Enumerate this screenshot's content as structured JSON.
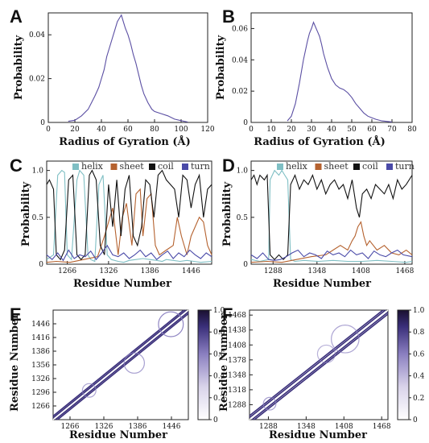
{
  "chart_data": [
    {
      "panel_label": "A",
      "type": "line",
      "xlabel": "Radius of Gyration (Å)",
      "ylabel": "Probability",
      "xlim": [
        0,
        120
      ],
      "ylim": [
        0,
        0.05
      ],
      "xticks": [
        "0",
        "20",
        "40",
        "60",
        "80",
        "100",
        "120"
      ],
      "yticks": [
        "0",
        "0.02",
        "0.04"
      ],
      "color": "#5b4fa3",
      "series": [
        {
          "x": [
            15,
            20,
            25,
            30,
            35,
            38,
            40,
            42,
            44,
            46,
            48,
            50,
            52,
            54,
            55,
            56,
            58,
            60,
            62,
            64,
            66,
            68,
            70,
            72,
            75,
            78,
            80,
            85,
            90,
            95,
            100,
            105
          ],
          "values": [
            0.0005,
            0.001,
            0.003,
            0.006,
            0.012,
            0.016,
            0.02,
            0.024,
            0.03,
            0.034,
            0.038,
            0.042,
            0.046,
            0.048,
            0.049,
            0.047,
            0.043,
            0.04,
            0.036,
            0.031,
            0.027,
            0.022,
            0.017,
            0.013,
            0.009,
            0.006,
            0.005,
            0.004,
            0.003,
            0.0015,
            0.0008,
            0.0002
          ]
        }
      ]
    },
    {
      "panel_label": "B",
      "type": "line",
      "xlabel": "Radius of Gyration (Å)",
      "ylabel": "Probability",
      "xlim": [
        0,
        80
      ],
      "ylim": [
        0,
        0.07
      ],
      "xticks": [
        "0",
        "10",
        "20",
        "30",
        "40",
        "50",
        "60",
        "70",
        "80"
      ],
      "yticks": [
        "0",
        "0.02",
        "0.04",
        "0.06"
      ],
      "color": "#5b4fa3",
      "series": [
        {
          "x": [
            18,
            20,
            22,
            24,
            26,
            28,
            29,
            30,
            31,
            32,
            33,
            34,
            35,
            36,
            38,
            40,
            42,
            44,
            46,
            48,
            50,
            52,
            54,
            56,
            58,
            60,
            62,
            65,
            70
          ],
          "values": [
            0.001,
            0.004,
            0.012,
            0.025,
            0.04,
            0.052,
            0.057,
            0.06,
            0.064,
            0.061,
            0.058,
            0.055,
            0.05,
            0.044,
            0.035,
            0.028,
            0.024,
            0.022,
            0.021,
            0.019,
            0.016,
            0.012,
            0.009,
            0.006,
            0.004,
            0.003,
            0.002,
            0.001,
            0.0003
          ]
        }
      ]
    },
    {
      "panel_label": "C",
      "type": "line",
      "xlabel": "Residue Number",
      "ylabel": "Probability",
      "xlim": [
        1236,
        1476
      ],
      "ylim": [
        0,
        1.1
      ],
      "xticks": [
        "1266",
        "1326",
        "1386",
        "1446"
      ],
      "yticks": [
        "0",
        "0.5",
        "1.0"
      ],
      "legend": [
        "helix",
        "sheet",
        "coil",
        "turn"
      ],
      "colors": [
        "#7fbfc4",
        "#b5622f",
        "#111111",
        "#4a4aa8"
      ],
      "series": [
        {
          "name": "helix",
          "x": [
            1236,
            1246,
            1252,
            1258,
            1262,
            1266,
            1272,
            1280,
            1284,
            1290,
            1296,
            1300,
            1306,
            1312,
            1318,
            1324,
            1330,
            1340,
            1348,
            1356,
            1366,
            1376,
            1386,
            1396,
            1404,
            1410,
            1420,
            1430,
            1440,
            1450,
            1460,
            1476
          ],
          "values": [
            0.05,
            0.1,
            0.95,
            1.0,
            0.98,
            0.1,
            0.05,
            0.9,
            1.0,
            0.95,
            0.1,
            0.05,
            0.03,
            0.85,
            0.95,
            0.1,
            0.05,
            0.03,
            0.02,
            0.04,
            0.05,
            0.06,
            0.05,
            0.04,
            0.03,
            0.05,
            0.04,
            0.03,
            0.04,
            0.03,
            0.02,
            0.03
          ]
        },
        {
          "name": "sheet",
          "x": [
            1236,
            1250,
            1270,
            1290,
            1310,
            1320,
            1326,
            1332,
            1340,
            1346,
            1352,
            1360,
            1366,
            1372,
            1376,
            1382,
            1388,
            1394,
            1400,
            1410,
            1420,
            1426,
            1432,
            1440,
            1446,
            1452,
            1458,
            1464,
            1470,
            1476
          ],
          "values": [
            0.02,
            0.03,
            0.02,
            0.05,
            0.08,
            0.3,
            0.45,
            0.6,
            0.1,
            0.5,
            0.65,
            0.2,
            0.75,
            0.8,
            0.3,
            0.7,
            0.75,
            0.2,
            0.1,
            0.15,
            0.2,
            0.5,
            0.3,
            0.1,
            0.3,
            0.4,
            0.5,
            0.45,
            0.2,
            0.1
          ]
        },
        {
          "name": "coil",
          "x": [
            1236,
            1240,
            1246,
            1250,
            1256,
            1262,
            1268,
            1274,
            1280,
            1286,
            1292,
            1298,
            1302,
            1308,
            1314,
            1320,
            1326,
            1332,
            1338,
            1344,
            1350,
            1356,
            1362,
            1368,
            1374,
            1380,
            1386,
            1392,
            1398,
            1404,
            1410,
            1416,
            1422,
            1428,
            1434,
            1440,
            1446,
            1452,
            1458,
            1464,
            1470,
            1476
          ],
          "values": [
            0.85,
            0.9,
            0.8,
            0.1,
            0.05,
            0.15,
            0.9,
            0.95,
            0.1,
            0.05,
            0.1,
            0.95,
            1.0,
            0.9,
            0.2,
            0.1,
            0.85,
            0.4,
            0.9,
            0.3,
            0.8,
            0.95,
            0.3,
            0.2,
            0.4,
            0.9,
            0.85,
            0.5,
            0.95,
            1.0,
            0.9,
            0.85,
            0.8,
            0.5,
            0.95,
            0.9,
            0.6,
            0.85,
            0.95,
            0.5,
            0.8,
            0.85
          ]
        },
        {
          "name": "turn",
          "x": [
            1236,
            1244,
            1252,
            1260,
            1268,
            1276,
            1284,
            1292,
            1300,
            1308,
            1316,
            1324,
            1332,
            1340,
            1348,
            1356,
            1364,
            1372,
            1380,
            1388,
            1396,
            1404,
            1412,
            1420,
            1428,
            1436,
            1444,
            1452,
            1460,
            1468,
            1476
          ],
          "values": [
            0.1,
            0.05,
            0.12,
            0.04,
            0.15,
            0.06,
            0.1,
            0.08,
            0.14,
            0.05,
            0.12,
            0.2,
            0.1,
            0.08,
            0.12,
            0.06,
            0.1,
            0.15,
            0.08,
            0.12,
            0.05,
            0.1,
            0.14,
            0.06,
            0.12,
            0.08,
            0.15,
            0.1,
            0.06,
            0.12,
            0.08
          ]
        }
      ]
    },
    {
      "panel_label": "D",
      "type": "line",
      "xlabel": "Residue Number",
      "ylabel": "Probability",
      "xlim": [
        1258,
        1478
      ],
      "ylim": [
        0,
        1.1
      ],
      "xticks": [
        "1288",
        "1348",
        "1408",
        "1468"
      ],
      "yticks": [
        "0",
        "0.5",
        "1.0"
      ],
      "legend": [
        "helix",
        "sheet",
        "coil",
        "turn"
      ],
      "colors": [
        "#7fbfc4",
        "#b5622f",
        "#111111",
        "#4a4aa8"
      ],
      "series": [
        {
          "name": "helix",
          "x": [
            1258,
            1270,
            1282,
            1284,
            1290,
            1296,
            1300,
            1304,
            1308,
            1312,
            1318,
            1330,
            1350,
            1370,
            1390,
            1410,
            1430,
            1450,
            1470,
            1478
          ],
          "values": [
            0.05,
            0.03,
            0.05,
            0.9,
            1.0,
            0.95,
            1.0,
            0.95,
            0.9,
            0.05,
            0.03,
            0.04,
            0.03,
            0.04,
            0.03,
            0.03,
            0.04,
            0.03,
            0.02,
            0.03
          ]
        },
        {
          "name": "sheet",
          "x": [
            1258,
            1280,
            1300,
            1320,
            1340,
            1360,
            1370,
            1380,
            1390,
            1396,
            1400,
            1404,
            1408,
            1412,
            1416,
            1420,
            1430,
            1440,
            1450,
            1460,
            1470,
            1478
          ],
          "values": [
            0.02,
            0.03,
            0.02,
            0.05,
            0.08,
            0.1,
            0.15,
            0.2,
            0.15,
            0.25,
            0.3,
            0.4,
            0.45,
            0.3,
            0.2,
            0.25,
            0.15,
            0.2,
            0.12,
            0.1,
            0.15,
            0.1
          ]
        },
        {
          "name": "coil",
          "x": [
            1258,
            1262,
            1266,
            1270,
            1276,
            1280,
            1284,
            1290,
            1296,
            1302,
            1308,
            1312,
            1318,
            1324,
            1330,
            1336,
            1342,
            1348,
            1354,
            1360,
            1366,
            1372,
            1378,
            1384,
            1390,
            1396,
            1402,
            1406,
            1410,
            1416,
            1422,
            1428,
            1434,
            1440,
            1446,
            1452,
            1458,
            1464,
            1470,
            1478
          ],
          "values": [
            0.9,
            0.95,
            0.85,
            0.95,
            0.9,
            0.95,
            0.1,
            0.05,
            0.1,
            0.05,
            0.1,
            0.85,
            0.95,
            0.8,
            0.9,
            0.85,
            0.95,
            0.8,
            0.9,
            0.75,
            0.85,
            0.9,
            0.8,
            0.85,
            0.7,
            0.9,
            0.6,
            0.5,
            0.75,
            0.8,
            0.7,
            0.85,
            0.8,
            0.75,
            0.85,
            0.7,
            0.9,
            0.8,
            0.85,
            0.95
          ]
        },
        {
          "name": "turn",
          "x": [
            1258,
            1266,
            1274,
            1282,
            1290,
            1298,
            1306,
            1314,
            1322,
            1330,
            1338,
            1346,
            1354,
            1362,
            1370,
            1378,
            1386,
            1394,
            1402,
            1410,
            1418,
            1426,
            1434,
            1442,
            1450,
            1458,
            1466,
            1478
          ],
          "values": [
            0.1,
            0.06,
            0.12,
            0.05,
            0.04,
            0.05,
            0.08,
            0.12,
            0.15,
            0.08,
            0.12,
            0.1,
            0.06,
            0.14,
            0.1,
            0.12,
            0.08,
            0.15,
            0.1,
            0.12,
            0.06,
            0.14,
            0.1,
            0.08,
            0.12,
            0.15,
            0.1,
            0.08
          ]
        }
      ]
    },
    {
      "panel_label": "E",
      "type": "heatmap",
      "xlabel": "Residue Number",
      "ylabel": "Residue Number",
      "xlim": [
        1236,
        1476
      ],
      "ylim": [
        1236,
        1476
      ],
      "xticks": [
        "1266",
        "1326",
        "1386",
        "1446"
      ],
      "yticks": [
        "1266",
        "1296",
        "1326",
        "1356",
        "1386",
        "1416",
        "1446"
      ],
      "colorbar_ticks": [
        "0",
        "0.2",
        "0.4",
        "0.6",
        "0.8",
        "1.0"
      ],
      "zlim": [
        0,
        1
      ],
      "diagonal_offsets": [
        4,
        8
      ],
      "contact_blobs": [
        {
          "cx": 1380,
          "cy": 1360,
          "r": 18,
          "v": 0.35
        },
        {
          "cx": 1445,
          "cy": 1445,
          "r": 22,
          "v": 0.55
        },
        {
          "cx": 1300,
          "cy": 1300,
          "r": 12,
          "v": 0.3
        }
      ]
    },
    {
      "panel_label": "F",
      "type": "heatmap",
      "xlabel": "Residue Number",
      "ylabel": "Residue Number",
      "xlim": [
        1258,
        1478
      ],
      "ylim": [
        1258,
        1478
      ],
      "xticks": [
        "1288",
        "1348",
        "1408",
        "1468"
      ],
      "yticks": [
        "1288",
        "1318",
        "1348",
        "1378",
        "1408",
        "1438",
        "1468"
      ],
      "colorbar_ticks": [
        "0",
        "0.2",
        "0.4",
        "0.6",
        "0.8",
        "1.0"
      ],
      "zlim": [
        0,
        1
      ],
      "diagonal_offsets": [
        4,
        8
      ],
      "contact_blobs": [
        {
          "cx": 1410,
          "cy": 1420,
          "r": 22,
          "v": 0.3
        },
        {
          "cx": 1380,
          "cy": 1390,
          "r": 14,
          "v": 0.2
        },
        {
          "cx": 1290,
          "cy": 1290,
          "r": 10,
          "v": 0.35
        }
      ]
    }
  ]
}
